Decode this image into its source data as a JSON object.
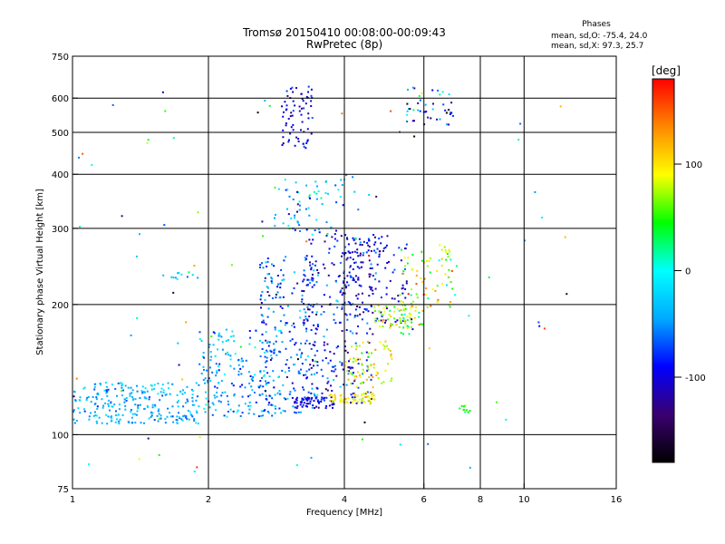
{
  "chart_data": {
    "type": "scatter",
    "title_line1": "Tromsø 20150410 00:08:00-00:09:43",
    "title_line2": "RwPretec (8p)",
    "xlabel": "Frequency [MHz]",
    "ylabel": "Stationary phase Virtual Height [km]",
    "x_scale": "log",
    "y_scale": "log",
    "xlim": [
      1,
      16
    ],
    "ylim": [
      75,
      750
    ],
    "x_ticks": [
      {
        "value": 1,
        "label": "1"
      },
      {
        "value": 2,
        "label": "2"
      },
      {
        "value": 4,
        "label": "4"
      },
      {
        "value": 6,
        "label": "6"
      },
      {
        "value": 8,
        "label": "8"
      },
      {
        "value": 10,
        "label": "10"
      },
      {
        "value": 16,
        "label": "16"
      }
    ],
    "y_ticks": [
      {
        "value": 75,
        "label": "75"
      },
      {
        "value": 100,
        "label": "100"
      },
      {
        "value": 200,
        "label": "200"
      },
      {
        "value": 300,
        "label": "300"
      },
      {
        "value": 400,
        "label": "400"
      },
      {
        "value": 500,
        "label": "500"
      },
      {
        "value": 600,
        "label": "600"
      },
      {
        "value": 750,
        "label": "750"
      }
    ],
    "x_gridlines": [
      2,
      4,
      6,
      8,
      10
    ],
    "y_gridlines": [
      100,
      200,
      300,
      400,
      500,
      600
    ],
    "info": {
      "heading": "Phases",
      "line1": "mean, sd,O: -75.4, 24.0",
      "line2": "mean, sd,X:  97.3, 25.7"
    },
    "colorbar": {
      "label": "[deg]",
      "range": [
        -180,
        180
      ],
      "ticks": [
        {
          "value": 100,
          "label": "100"
        },
        {
          "value": 0,
          "label": "0"
        },
        {
          "value": -100,
          "label": "-100"
        }
      ],
      "colormap": [
        "#000000",
        "#3a0070",
        "#0000ff",
        "#00aaff",
        "#00ffff",
        "#00ff00",
        "#ffff00",
        "#ff8800",
        "#ff0000"
      ]
    },
    "clusters": [
      {
        "x": [
          1.0,
          1.9
        ],
        "y": [
          106,
          132
        ],
        "n": 260,
        "phase": -40,
        "sd": 20
      },
      {
        "x": [
          1.9,
          2.9
        ],
        "y": [
          110,
          175
        ],
        "n": 200,
        "phase": -45,
        "sd": 25
      },
      {
        "x": [
          2.6,
          3.5
        ],
        "y": [
          112,
          260
        ],
        "n": 230,
        "phase": -70,
        "sd": 30
      },
      {
        "x": [
          3.2,
          4.7
        ],
        "y": [
          118,
          300
        ],
        "n": 260,
        "phase": -90,
        "sd": 30
      },
      {
        "x": [
          3.1,
          3.8
        ],
        "y": [
          115,
          122
        ],
        "n": 60,
        "phase": -100,
        "sd": 15
      },
      {
        "x": [
          3.7,
          4.7
        ],
        "y": [
          118,
          125
        ],
        "n": 60,
        "phase": 95,
        "sd": 15
      },
      {
        "x": [
          4.0,
          5.1
        ],
        "y": [
          128,
          165
        ],
        "n": 70,
        "phase": 90,
        "sd": 25
      },
      {
        "x": [
          3.9,
          5.5
        ],
        "y": [
          180,
          290
        ],
        "n": 130,
        "phase": -95,
        "sd": 20
      },
      {
        "x": [
          4.6,
          6.0
        ],
        "y": [
          176,
          200
        ],
        "n": 70,
        "phase": 70,
        "sd": 30
      },
      {
        "x": [
          5.3,
          7.1
        ],
        "y": [
          195,
          275
        ],
        "n": 80,
        "phase": 80,
        "sd": 40
      },
      {
        "x": [
          2.9,
          3.4
        ],
        "y": [
          460,
          640
        ],
        "n": 70,
        "phase": -100,
        "sd": 20
      },
      {
        "x": [
          5.5,
          7.0
        ],
        "y": [
          520,
          640
        ],
        "n": 45,
        "phase": -60,
        "sd": 60
      },
      {
        "x": [
          2.8,
          4.3
        ],
        "y": [
          290,
          400
        ],
        "n": 70,
        "phase": -40,
        "sd": 40
      },
      {
        "x": [
          1.0,
          12.5
        ],
        "y": [
          80,
          640
        ],
        "n": 90,
        "phase": 0,
        "sd": 90
      },
      {
        "x": [
          1.5,
          1.9
        ],
        "y": [
          228,
          238
        ],
        "n": 12,
        "phase": -20,
        "sd": 20
      },
      {
        "x": [
          7.2,
          7.6
        ],
        "y": [
          112,
          118
        ],
        "n": 10,
        "phase": 40,
        "sd": 15
      }
    ]
  }
}
